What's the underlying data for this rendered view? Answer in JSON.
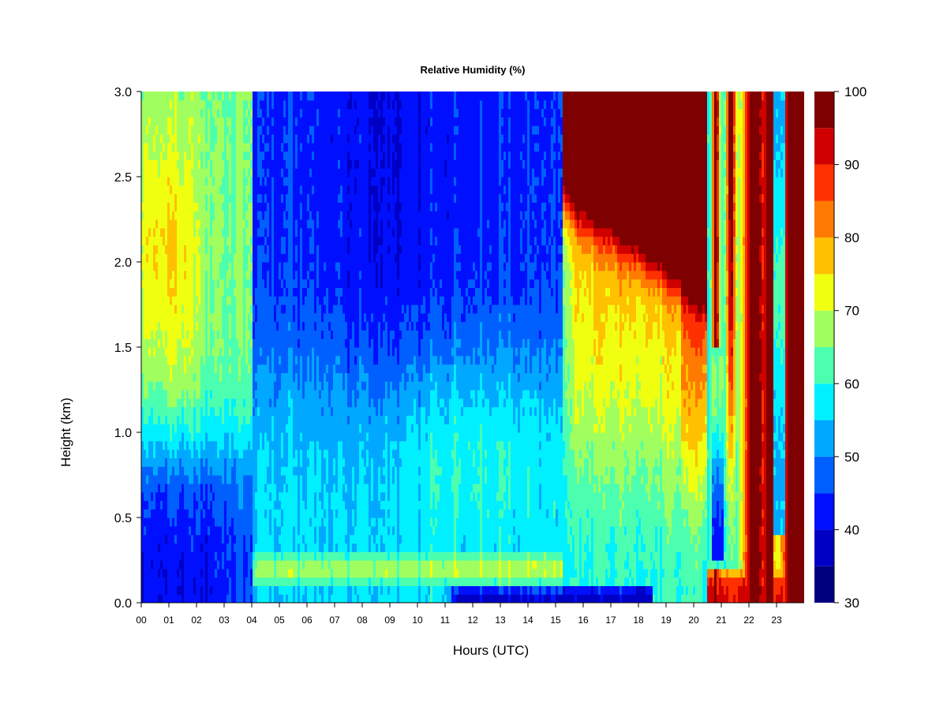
{
  "chart_data": {
    "type": "heatmap",
    "title": "Relative Humidity (%)",
    "xlabel": "Hours (UTC)",
    "ylabel": "Height (km)",
    "xlim": [
      0,
      24
    ],
    "ylim": [
      0.0,
      3.0
    ],
    "x_ticks": [
      "00",
      "01",
      "02",
      "03",
      "04",
      "05",
      "06",
      "07",
      "08",
      "09",
      "10",
      "11",
      "12",
      "13",
      "14",
      "15",
      "16",
      "17",
      "18",
      "19",
      "20",
      "21",
      "22",
      "23"
    ],
    "y_ticks": [
      "0.0",
      "0.5",
      "1.0",
      "1.5",
      "2.0",
      "2.5",
      "3.0"
    ],
    "colorbar": {
      "levels": [
        30,
        35,
        40,
        45,
        50,
        55,
        60,
        65,
        70,
        75,
        80,
        85,
        90,
        95,
        100
      ],
      "tick_labels": [
        "30",
        "40",
        "50",
        "60",
        "70",
        "80",
        "90",
        "100"
      ],
      "colors": [
        "#00007f",
        "#0000c4",
        "#0010ff",
        "#0060ff",
        "#00a8ff",
        "#00f0ff",
        "#4cffb0",
        "#a0ff5f",
        "#f0ff10",
        "#ffc000",
        "#ff7a00",
        "#ff3000",
        "#d00000",
        "#7f0000"
      ]
    },
    "field_description_hours": [
      {
        "x_range": [
          0,
          4
        ],
        "pattern": "blue ~35-45 near surface to 0.9 km; cyan/green 55-70 above, yellow ~70-80 near 1.2-2.5 km around 01-02 UTC"
      },
      {
        "x_range": [
          4,
          11
        ],
        "pattern": "yellow-green ~65-75 layer 0-0.45 km; cyan 50-60 up to 1.5 km; blue 35-45 above, darkest 08-10 UTC"
      },
      {
        "x_range": [
          11,
          15.3
        ],
        "pattern": "dark blue 30-40 at surface; yellow/green ~65-70 at 0.1-0.4 km; cyan 50-60 to 1.2 km; blue 35-45 above"
      },
      {
        "x_range": [
          15.3,
          20.5
        ],
        "pattern": "dark blue near surface to 17 UTC; cyan-green rising; yellow-orange 70-85 at 1.2-2.0 km; saturated 95-100 above 2.1 km after 16.5 UTC"
      },
      {
        "x_range": [
          20.5,
          24
        ],
        "pattern": "orange-red 85-100 in surface layer 0-0.25 km; alternating red/dark red columns (95-100) and cyan/blue columns (45-60) up to 3 km"
      }
    ]
  }
}
